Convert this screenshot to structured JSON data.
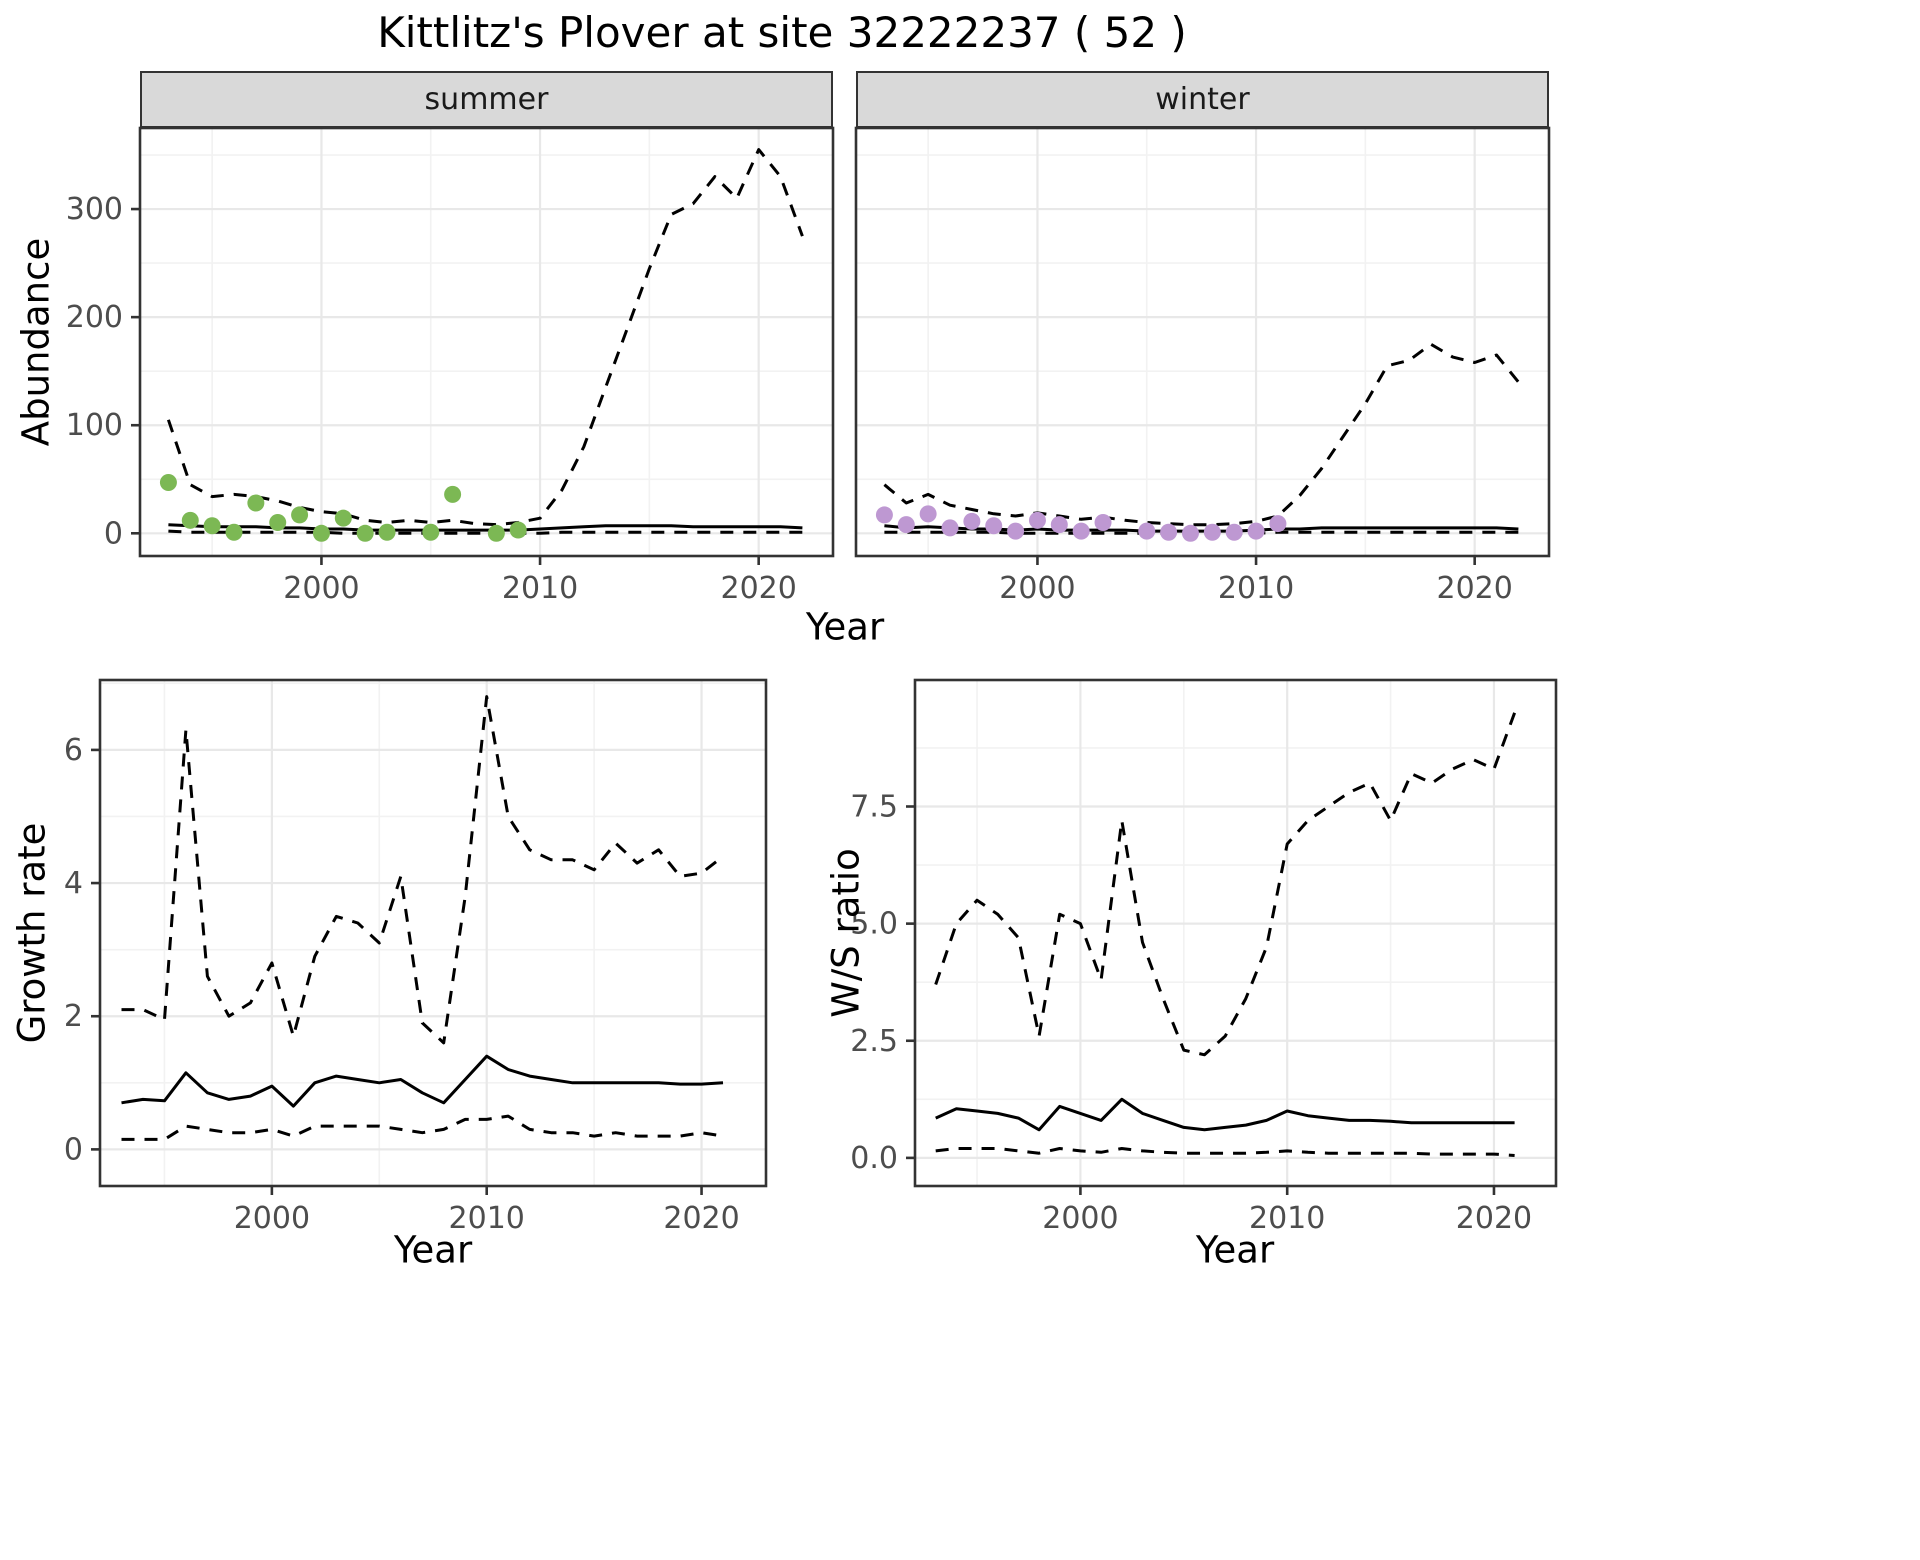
{
  "title": "Kittlitz's Plover at site 32222237 ( 52 )",
  "facets": [
    {
      "label": "summer"
    },
    {
      "label": "winter"
    }
  ],
  "axis_labels": {
    "abundance": "Abundance",
    "year_top": "Year",
    "growth_rate": "Growth rate",
    "year_bottom_left": "Year",
    "ws_ratio": "W/S ratio",
    "year_bottom_right": "Year"
  },
  "colors": {
    "summer_points": "#7cb854",
    "winter_points": "#be98d2",
    "line": "#000000",
    "strip_bg": "#d9d9d9",
    "grid_major": "#e8e8e8",
    "grid_minor": "#f2f2f2",
    "panel_border": "#333333",
    "tick_text": "#4d4d4d"
  },
  "chart_data": [
    {
      "id": "abundance-summer",
      "type": "line",
      "facet": "summer",
      "xlabel": "Year",
      "ylabel": "Abundance",
      "xlim": [
        1991.7,
        2023.4
      ],
      "ylim": [
        -21,
        375
      ],
      "xticks": [
        2000,
        2010,
        2020
      ],
      "xtick_labels": [
        "2000",
        "2010",
        "2020"
      ],
      "xticks_minor": [
        1995,
        2005,
        2015
      ],
      "yticks": [
        0,
        100,
        200,
        300
      ],
      "ytick_labels": [
        "0",
        "100",
        "200",
        "300"
      ],
      "yticks_minor": [
        50,
        150,
        250,
        350
      ],
      "show_ytick_labels": true,
      "grid": true,
      "x": [
        1993,
        1994,
        1995,
        1996,
        1997,
        1998,
        1999,
        2000,
        2001,
        2002,
        2003,
        2004,
        2005,
        2006,
        2007,
        2008,
        2009,
        2010,
        2011,
        2012,
        2013,
        2014,
        2015,
        2016,
        2017,
        2018,
        2019,
        2020,
        2021,
        2022
      ],
      "series": [
        {
          "name": "upper_95ci",
          "style": "dashed",
          "color": "#000000",
          "values": [
            105,
            45,
            34,
            36,
            34,
            30,
            24,
            20,
            18,
            12,
            10,
            12,
            10,
            12,
            9,
            8,
            10,
            14,
            40,
            80,
            135,
            190,
            245,
            295,
            305,
            330,
            310,
            355,
            330,
            275
          ]
        },
        {
          "name": "estimated_abundance",
          "style": "solid",
          "color": "#000000",
          "values": [
            8,
            7,
            6,
            6,
            6,
            5,
            5,
            4,
            4,
            3,
            3,
            3,
            3,
            3,
            3,
            3,
            3,
            4,
            5,
            6,
            7,
            7,
            7,
            7,
            6,
            6,
            6,
            6,
            6,
            5
          ]
        },
        {
          "name": "lower_95ci",
          "style": "dashed",
          "color": "#000000",
          "values": [
            2,
            1,
            1,
            1,
            1,
            1,
            1,
            1,
            0,
            0,
            0,
            0,
            0,
            0,
            0,
            0,
            0,
            0,
            1,
            1,
            1,
            1,
            1,
            1,
            1,
            1,
            1,
            1,
            1,
            1
          ]
        },
        {
          "name": "observed_counts",
          "style": "points",
          "color": "#7cb854",
          "x": [
            1993,
            1994,
            1995,
            1996,
            1997,
            1998,
            1999,
            2000,
            2001,
            2002,
            2003,
            2005,
            2006,
            2008,
            2009
          ],
          "values": [
            47,
            12,
            7,
            1,
            28,
            10,
            17,
            0,
            14,
            0,
            1,
            1,
            36,
            0,
            3
          ]
        }
      ]
    },
    {
      "id": "abundance-winter",
      "type": "line",
      "facet": "winter",
      "xlabel": "Year",
      "ylabel": "Abundance",
      "xlim": [
        1991.7,
        2023.4
      ],
      "ylim": [
        -21,
        375
      ],
      "xticks": [
        2000,
        2010,
        2020
      ],
      "xtick_labels": [
        "2000",
        "2010",
        "2020"
      ],
      "xticks_minor": [
        1995,
        2005,
        2015
      ],
      "yticks": [
        0,
        100,
        200,
        300
      ],
      "ytick_labels": [
        "0",
        "100",
        "200",
        "300"
      ],
      "yticks_minor": [
        50,
        150,
        250,
        350
      ],
      "show_ytick_labels": false,
      "grid": true,
      "x": [
        1993,
        1994,
        1995,
        1996,
        1997,
        1998,
        1999,
        2000,
        2001,
        2002,
        2003,
        2004,
        2005,
        2006,
        2007,
        2008,
        2009,
        2010,
        2011,
        2012,
        2013,
        2014,
        2015,
        2016,
        2017,
        2018,
        2019,
        2020,
        2021,
        2022
      ],
      "series": [
        {
          "name": "upper_95ci",
          "style": "dashed",
          "color": "#000000",
          "values": [
            45,
            28,
            36,
            26,
            22,
            18,
            16,
            19,
            16,
            13,
            15,
            12,
            10,
            9,
            8,
            8,
            9,
            11,
            16,
            35,
            60,
            90,
            120,
            155,
            160,
            175,
            163,
            158,
            165,
            140
          ]
        },
        {
          "name": "estimated_abundance",
          "style": "solid",
          "color": "#000000",
          "values": [
            7,
            5,
            6,
            5,
            4,
            4,
            3,
            4,
            3,
            3,
            3,
            3,
            2,
            2,
            2,
            2,
            2,
            3,
            4,
            4,
            5,
            5,
            5,
            5,
            5,
            5,
            5,
            5,
            5,
            4
          ]
        },
        {
          "name": "lower_95ci",
          "style": "dashed",
          "color": "#000000",
          "values": [
            1,
            1,
            1,
            1,
            1,
            1,
            0,
            0,
            0,
            0,
            0,
            0,
            0,
            0,
            0,
            0,
            0,
            0,
            1,
            1,
            1,
            1,
            1,
            1,
            1,
            1,
            1,
            1,
            1,
            1
          ]
        },
        {
          "name": "observed_counts",
          "style": "points",
          "color": "#be98d2",
          "x": [
            1993,
            1994,
            1995,
            1996,
            1997,
            1998,
            1999,
            2000,
            2001,
            2002,
            2003,
            2005,
            2006,
            2007,
            2008,
            2009,
            2010,
            2011
          ],
          "values": [
            17,
            8,
            18,
            5,
            11,
            7,
            2,
            12,
            8,
            2,
            10,
            2,
            1,
            0,
            1,
            1,
            2,
            9
          ]
        }
      ]
    },
    {
      "id": "growth-rate",
      "type": "line",
      "xlabel": "Year",
      "ylabel": "Growth rate",
      "xlim": [
        1992,
        2023
      ],
      "ylim": [
        -0.55,
        7.05
      ],
      "xticks": [
        2000,
        2010,
        2020
      ],
      "xtick_labels": [
        "2000",
        "2010",
        "2020"
      ],
      "xticks_minor": [
        1995,
        2005,
        2015
      ],
      "yticks": [
        0,
        2,
        4,
        6
      ],
      "ytick_labels": [
        "0",
        "2",
        "4",
        "6"
      ],
      "yticks_minor": [
        1,
        3,
        5,
        7
      ],
      "show_ytick_labels": true,
      "grid": true,
      "x": [
        1993,
        1994,
        1995,
        1996,
        1997,
        1998,
        1999,
        2000,
        2001,
        2002,
        2003,
        2004,
        2005,
        2006,
        2007,
        2008,
        2009,
        2010,
        2011,
        2012,
        2013,
        2014,
        2015,
        2016,
        2017,
        2018,
        2019,
        2020,
        2021
      ],
      "series": [
        {
          "name": "upper_95ci",
          "style": "dashed",
          "color": "#000000",
          "values": [
            2.1,
            2.1,
            1.95,
            6.3,
            2.6,
            2.0,
            2.2,
            2.8,
            1.7,
            2.9,
            3.5,
            3.4,
            3.1,
            4.1,
            1.9,
            1.6,
            3.8,
            6.8,
            5.0,
            4.5,
            4.35,
            4.35,
            4.2,
            4.6,
            4.3,
            4.5,
            4.1,
            4.15,
            4.4
          ]
        },
        {
          "name": "estimated_growth_rate",
          "style": "solid",
          "color": "#000000",
          "values": [
            0.7,
            0.75,
            0.73,
            1.15,
            0.85,
            0.75,
            0.8,
            0.95,
            0.65,
            1.0,
            1.1,
            1.05,
            1.0,
            1.05,
            0.85,
            0.7,
            1.05,
            1.4,
            1.2,
            1.1,
            1.05,
            1.0,
            1.0,
            1.0,
            1.0,
            1.0,
            0.98,
            0.98,
            1.0
          ]
        },
        {
          "name": "lower_95ci",
          "style": "dashed",
          "color": "#000000",
          "values": [
            0.15,
            0.15,
            0.15,
            0.35,
            0.3,
            0.25,
            0.25,
            0.3,
            0.2,
            0.35,
            0.35,
            0.35,
            0.35,
            0.3,
            0.25,
            0.3,
            0.45,
            0.45,
            0.5,
            0.3,
            0.25,
            0.25,
            0.2,
            0.25,
            0.2,
            0.2,
            0.2,
            0.25,
            0.2
          ]
        }
      ]
    },
    {
      "id": "ws-ratio",
      "type": "line",
      "xlabel": "Year",
      "ylabel": "W/S ratio",
      "xlim": [
        1992,
        2023
      ],
      "ylim": [
        -0.6,
        10.2
      ],
      "xticks": [
        2000,
        2010,
        2020
      ],
      "xtick_labels": [
        "2000",
        "2010",
        "2020"
      ],
      "xticks_minor": [
        1995,
        2005,
        2015
      ],
      "yticks": [
        0,
        2.5,
        5.0,
        7.5
      ],
      "ytick_labels": [
        "0.0",
        "2.5",
        "5.0",
        "7.5"
      ],
      "yticks_minor": [
        1.25,
        3.75,
        6.25,
        8.75
      ],
      "show_ytick_labels": true,
      "grid": true,
      "x": [
        1993,
        1994,
        1995,
        1996,
        1997,
        1998,
        1999,
        2000,
        2001,
        2002,
        2003,
        2004,
        2005,
        2006,
        2007,
        2008,
        2009,
        2010,
        2011,
        2012,
        2013,
        2014,
        2015,
        2016,
        2017,
        2018,
        2019,
        2020,
        2021
      ],
      "series": [
        {
          "name": "upper_95ci",
          "style": "dashed",
          "color": "#000000",
          "values": [
            3.7,
            5.0,
            5.5,
            5.2,
            4.7,
            2.6,
            5.2,
            5.0,
            3.8,
            7.2,
            4.6,
            3.4,
            2.3,
            2.2,
            2.6,
            3.4,
            4.5,
            6.7,
            7.2,
            7.5,
            7.8,
            8.0,
            7.2,
            8.2,
            8.0,
            8.3,
            8.5,
            8.3,
            9.5
          ]
        },
        {
          "name": "estimated_ws_ratio",
          "style": "solid",
          "color": "#000000",
          "values": [
            0.85,
            1.05,
            1.0,
            0.95,
            0.85,
            0.6,
            1.1,
            0.95,
            0.8,
            1.25,
            0.95,
            0.8,
            0.65,
            0.6,
            0.65,
            0.7,
            0.8,
            1.0,
            0.9,
            0.85,
            0.8,
            0.8,
            0.78,
            0.75,
            0.75,
            0.75,
            0.75,
            0.75,
            0.75
          ]
        },
        {
          "name": "lower_95ci",
          "style": "dashed",
          "color": "#000000",
          "values": [
            0.15,
            0.2,
            0.2,
            0.2,
            0.15,
            0.1,
            0.2,
            0.15,
            0.12,
            0.2,
            0.15,
            0.12,
            0.1,
            0.1,
            0.1,
            0.1,
            0.12,
            0.15,
            0.12,
            0.1,
            0.1,
            0.1,
            0.1,
            0.1,
            0.08,
            0.08,
            0.08,
            0.08,
            0.05
          ]
        }
      ]
    }
  ]
}
